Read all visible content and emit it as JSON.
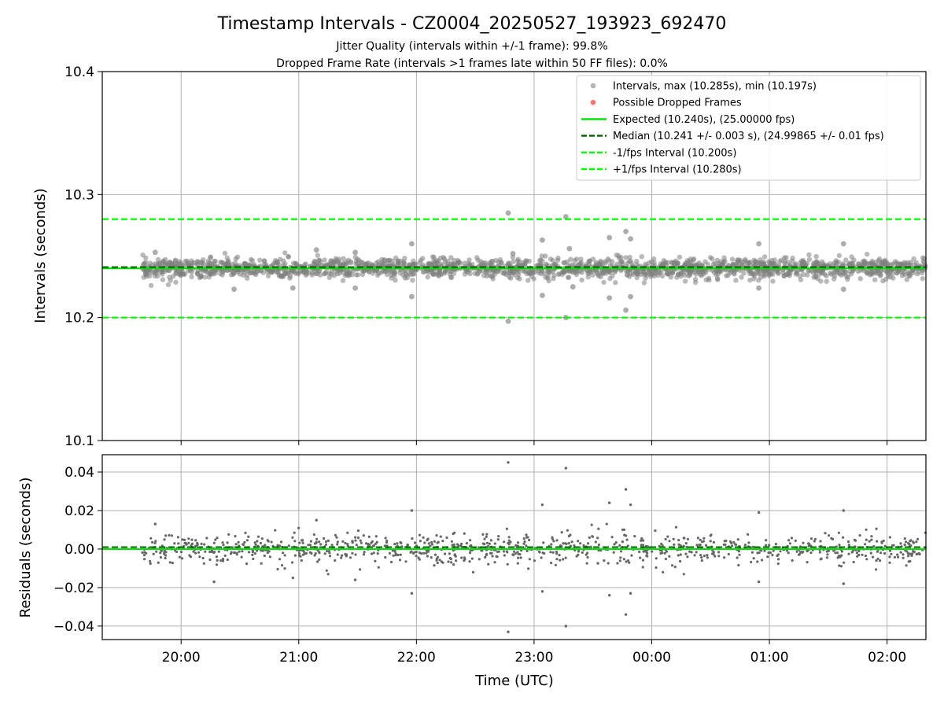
{
  "figure": {
    "title": "Timestamp Intervals - CZ0004_20250527_193923_692470",
    "subtitle_1": "Jitter Quality (intervals within +/-1 frame): 99.8%",
    "subtitle_2": "Dropped Frame Rate (intervals >1 frames late within 50 FF files): 0.0%"
  },
  "colors": {
    "points": "#808080",
    "dropped": "#ff4d4d",
    "expected": "#00e000",
    "median": "#006400",
    "interval_lines": "#00ff00",
    "grid": "#b0b0b0"
  },
  "chart_data": [
    {
      "type": "scatter",
      "name": "intervals",
      "xlabel": "",
      "ylabel": "Intervals (seconds)",
      "x_range_hours": [
        19.33,
        26.33
      ],
      "ylim": [
        10.1,
        10.4
      ],
      "yticks": [
        10.1,
        10.2,
        10.3,
        10.4
      ],
      "ytick_labels": [
        "10.1",
        "10.2",
        "10.3",
        "10.4"
      ],
      "grid": true,
      "legend_position": "top-right",
      "reference_lines": [
        {
          "name": "expected",
          "value": 10.24,
          "style": "solid"
        },
        {
          "name": "median",
          "value": 10.241,
          "style": "dashed"
        },
        {
          "name": "minus_one_fps",
          "value": 10.2,
          "style": "dashed"
        },
        {
          "name": "plus_one_fps",
          "value": 10.28,
          "style": "dashed"
        }
      ],
      "legend": [
        {
          "label": "Intervals, max (10.285s), min (10.197s)",
          "kind": "marker",
          "color": "#a0a0a0"
        },
        {
          "label": "Possible Dropped Frames",
          "kind": "marker",
          "color": "#ff4d4d"
        },
        {
          "label": "Expected (10.240s), (25.00000 fps)",
          "kind": "solid",
          "color": "#00e000"
        },
        {
          "label": "Median (10.241 +/- 0.003 s), (24.99865 +/- 0.01 fps)",
          "kind": "dashed",
          "color": "#006400"
        },
        {
          "label": "-1/fps Interval (10.200s)",
          "kind": "dashed",
          "color": "#00ff00"
        },
        {
          "label": "+1/fps Interval (10.280s)",
          "kind": "dashed",
          "color": "#00ff00"
        }
      ],
      "series": [
        {
          "name": "outliers",
          "points": [
            [
              19.78,
              10.253
            ],
            [
              20.45,
              10.223
            ],
            [
              20.95,
              10.224
            ],
            [
              21.15,
              10.255
            ],
            [
              21.48,
              10.253
            ],
            [
              21.48,
              10.224
            ],
            [
              21.96,
              10.26
            ],
            [
              21.96,
              10.217
            ],
            [
              22.78,
              10.285
            ],
            [
              22.78,
              10.197
            ],
            [
              22.82,
              10.252
            ],
            [
              23.07,
              10.263
            ],
            [
              23.07,
              10.218
            ],
            [
              23.27,
              10.282
            ],
            [
              23.27,
              10.2
            ],
            [
              23.3,
              10.256
            ],
            [
              23.33,
              10.225
            ],
            [
              23.64,
              10.265
            ],
            [
              23.64,
              10.216
            ],
            [
              23.78,
              10.27
            ],
            [
              23.78,
              10.206
            ],
            [
              23.82,
              10.264
            ],
            [
              23.82,
              10.217
            ],
            [
              24.91,
              10.26
            ],
            [
              24.91,
              10.224
            ],
            [
              25.63,
              10.26
            ],
            [
              25.63,
              10.223
            ]
          ]
        }
      ],
      "band": {
        "name": "intervals",
        "x_start": 19.67,
        "x_end": 26.33,
        "center": 10.24,
        "spread": 0.004,
        "count": 1900
      }
    },
    {
      "type": "scatter",
      "name": "residuals",
      "xlabel": "Time (UTC)",
      "ylabel": "Residuals (seconds)",
      "x_range_hours": [
        19.33,
        26.33
      ],
      "xticks": [
        20,
        21,
        22,
        23,
        24,
        25,
        26
      ],
      "xtick_labels": [
        "20:00",
        "21:00",
        "22:00",
        "23:00",
        "00:00",
        "01:00",
        "02:00"
      ],
      "ylim": [
        -0.047,
        0.049
      ],
      "yticks": [
        -0.04,
        -0.02,
        0.0,
        0.02,
        0.04
      ],
      "ytick_labels": [
        "−0.04",
        "−0.02",
        "0.00",
        "0.02",
        "0.04"
      ],
      "grid": true,
      "reference_lines": [
        {
          "name": "zero",
          "value": 0.0,
          "style": "solid"
        },
        {
          "name": "median",
          "value": 0.001,
          "style": "dashed"
        }
      ],
      "series": [
        {
          "name": "outliers",
          "points": [
            [
              19.78,
              0.013
            ],
            [
              20.28,
              -0.017
            ],
            [
              20.95,
              -0.015
            ],
            [
              21.15,
              0.015
            ],
            [
              21.48,
              -0.016
            ],
            [
              21.96,
              0.02
            ],
            [
              21.96,
              -0.023
            ],
            [
              22.78,
              0.045
            ],
            [
              22.78,
              -0.043
            ],
            [
              23.07,
              0.023
            ],
            [
              23.07,
              -0.022
            ],
            [
              23.27,
              0.042
            ],
            [
              23.27,
              -0.04
            ],
            [
              23.64,
              0.024
            ],
            [
              23.64,
              -0.024
            ],
            [
              23.78,
              0.031
            ],
            [
              23.78,
              -0.034
            ],
            [
              23.82,
              0.023
            ],
            [
              23.82,
              -0.023
            ],
            [
              24.91,
              0.019
            ],
            [
              24.91,
              -0.017
            ],
            [
              25.63,
              0.02
            ],
            [
              25.63,
              -0.018
            ]
          ]
        }
      ],
      "band": {
        "name": "residuals",
        "x_start": 19.67,
        "x_end": 26.33,
        "center": 0.0,
        "spread": 0.004,
        "count": 1000
      }
    }
  ]
}
